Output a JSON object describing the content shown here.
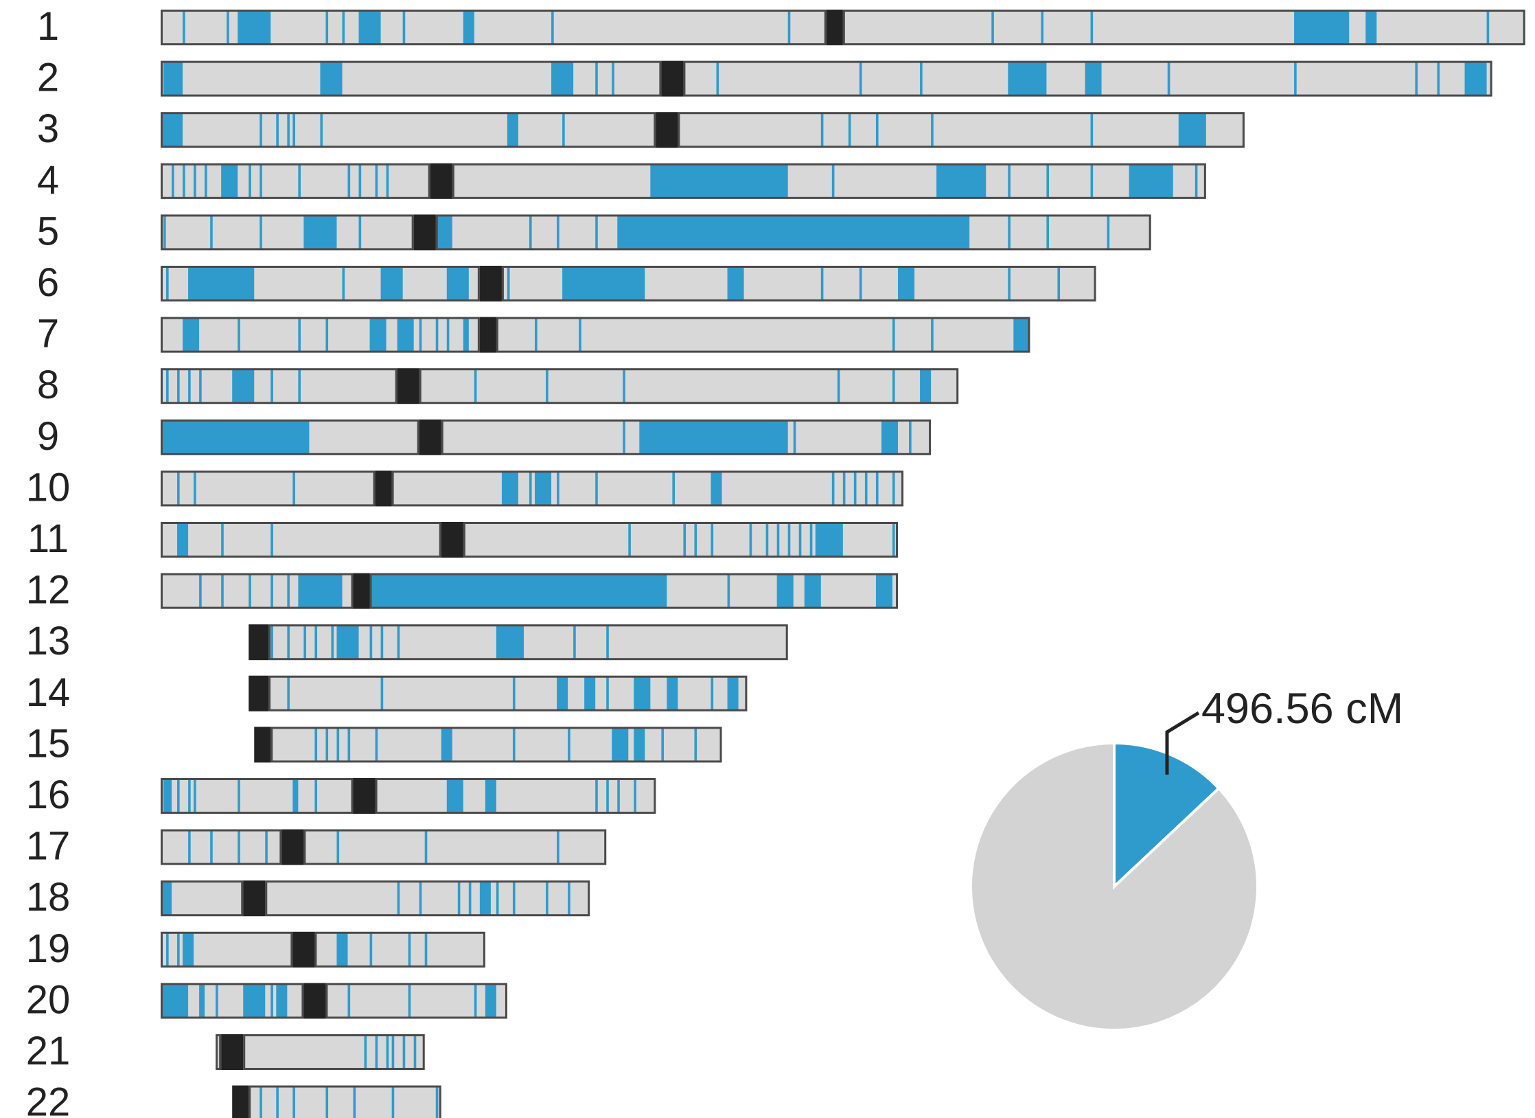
{
  "chart_data": {
    "type": "chromosome-ideogram-with-pie",
    "units": "approximate position along chromosome, scaled so chromosome 1 ≈ 248",
    "colors": {
      "shared": "#2f9bcc",
      "background": "#d8d8d8",
      "centromere": "#222222",
      "outline": "#4a4a4a",
      "pie_rest": "#d3d3d3"
    },
    "chromosomes": [
      {
        "label": "1",
        "start": 0,
        "end": 248,
        "centromere": [
          121,
          124
        ],
        "segments": [
          [
            14,
            20
          ],
          4,
          12,
          30,
          33,
          [
            36,
            40
          ],
          44,
          [
            55,
            57
          ],
          71,
          114,
          151,
          160,
          169,
          [
            206,
            216
          ],
          [
            219,
            221
          ],
          241
        ]
      },
      {
        "label": "2",
        "start": 0,
        "end": 242,
        "centromere": [
          91,
          95
        ],
        "segments": [
          [
            0.5,
            4
          ],
          [
            29,
            33
          ],
          [
            71,
            75
          ],
          79,
          82,
          101,
          127,
          138,
          [
            154,
            161
          ],
          [
            168,
            171
          ],
          183,
          206,
          228,
          232,
          [
            237,
            241
          ]
        ]
      },
      {
        "label": "3",
        "start": 0,
        "end": 197,
        "centromere": [
          90,
          94
        ],
        "segments": [
          [
            0,
            4
          ],
          18,
          21,
          23,
          24,
          29,
          [
            63,
            65
          ],
          73,
          120,
          125,
          130,
          140,
          169,
          [
            185,
            190
          ]
        ]
      },
      {
        "label": "4",
        "start": 0,
        "end": 190,
        "centromere": [
          49,
          53
        ],
        "segments": [
          2,
          4,
          6,
          8,
          [
            11,
            14
          ],
          16,
          18,
          25,
          34,
          36,
          39,
          41,
          [
            89,
            114
          ],
          122,
          [
            141,
            150
          ],
          154,
          161,
          169,
          [
            176,
            184
          ],
          188
        ]
      },
      {
        "label": "5",
        "start": 0,
        "end": 180,
        "centromere": [
          46,
          50
        ],
        "segments": [
          0.5,
          9,
          18,
          [
            26,
            32
          ],
          36,
          [
            50,
            53
          ],
          67,
          72,
          79,
          [
            83,
            147
          ],
          154,
          161,
          172
        ]
      },
      {
        "label": "6",
        "start": 0,
        "end": 170,
        "centromere": [
          58,
          62
        ],
        "segments": [
          1,
          [
            5,
            17
          ],
          33,
          [
            40,
            44
          ],
          [
            52,
            56
          ],
          63,
          [
            73,
            88
          ],
          [
            103,
            106
          ],
          120,
          127,
          [
            134,
            137
          ],
          154,
          163
        ]
      },
      {
        "label": "7",
        "start": 0,
        "end": 158,
        "centromere": [
          58,
          61
        ],
        "segments": [
          [
            4,
            7
          ],
          14,
          25,
          30,
          [
            38,
            41
          ],
          [
            43,
            46
          ],
          47,
          50,
          52,
          [
            55,
            56
          ],
          68,
          76,
          133,
          140,
          [
            155,
            158
          ]
        ]
      },
      {
        "label": "8",
        "start": 0,
        "end": 145,
        "centromere": [
          43,
          47
        ],
        "segments": [
          1,
          3,
          5,
          7,
          [
            13,
            17
          ],
          20,
          25,
          57,
          70,
          84,
          123,
          133,
          [
            138,
            140
          ]
        ]
      },
      {
        "label": "9",
        "start": 0,
        "end": 140,
        "centromere": [
          47,
          51
        ],
        "segments": [
          [
            0,
            27
          ],
          84,
          [
            87,
            114
          ],
          115,
          [
            131,
            134
          ],
          136
        ]
      },
      {
        "label": "10",
        "start": 0,
        "end": 135,
        "centromere": [
          39,
          42
        ],
        "segments": [
          3,
          6,
          24,
          [
            62,
            65
          ],
          67,
          [
            68,
            71
          ],
          72,
          79,
          93,
          [
            100,
            102
          ],
          122,
          124,
          126,
          128,
          130,
          133
        ]
      },
      {
        "label": "11",
        "start": 0,
        "end": 134,
        "centromere": [
          51,
          55
        ],
        "segments": [
          [
            3,
            5
          ],
          11,
          20,
          85,
          95,
          97,
          100,
          107,
          110,
          112,
          114,
          116,
          118,
          [
            119,
            124
          ],
          133
        ]
      },
      {
        "label": "12",
        "start": 0,
        "end": 134,
        "centromere": [
          35,
          38
        ],
        "segments": [
          7,
          11,
          16,
          20,
          23,
          [
            25,
            33
          ],
          [
            38,
            92
          ],
          103,
          [
            112,
            115
          ],
          [
            117,
            120
          ],
          [
            130,
            133
          ]
        ]
      },
      {
        "label": "13",
        "start": 16,
        "end": 114,
        "centromere": [
          16,
          19.6
        ],
        "segments": [
          20,
          23,
          26,
          28,
          31,
          [
            32,
            36
          ],
          38,
          40,
          43,
          [
            61,
            66
          ],
          75,
          81
        ]
      },
      {
        "label": "14",
        "start": 16,
        "end": 106.6,
        "centromere": [
          16,
          19.6
        ],
        "segments": [
          23,
          40,
          64,
          [
            72,
            74
          ],
          [
            77,
            79
          ],
          81,
          [
            86,
            89
          ],
          [
            92,
            94
          ],
          100,
          [
            103,
            105
          ]
        ]
      },
      {
        "label": "15",
        "start": 17,
        "end": 102,
        "centromere": [
          17,
          20
        ],
        "segments": [
          28,
          30,
          32,
          34,
          39,
          [
            51,
            53
          ],
          64,
          74,
          [
            82,
            85
          ],
          [
            86,
            88
          ],
          91,
          97
        ]
      },
      {
        "label": "16",
        "start": 0,
        "end": 90,
        "centromere": [
          35,
          39
        ],
        "segments": [
          [
            0.5,
            2
          ],
          3,
          5,
          6,
          14,
          [
            24,
            25
          ],
          28,
          [
            52,
            55
          ],
          [
            59,
            61
          ],
          79,
          81,
          83,
          86
        ]
      },
      {
        "label": "17",
        "start": 0,
        "end": 81,
        "centromere": [
          22,
          26
        ],
        "segments": [
          5,
          9,
          14,
          19,
          32,
          48,
          72
        ]
      },
      {
        "label": "18",
        "start": 0,
        "end": 78,
        "centromere": [
          15,
          19
        ],
        "segments": [
          [
            0,
            2
          ],
          43,
          47,
          54,
          56,
          [
            58,
            60
          ],
          61,
          64,
          70,
          74
        ]
      },
      {
        "label": "19",
        "start": 0,
        "end": 59,
        "centromere": [
          24,
          28
        ],
        "segments": [
          1,
          3,
          [
            4,
            6
          ],
          [
            32,
            34
          ],
          38,
          45,
          48
        ]
      },
      {
        "label": "20",
        "start": 0,
        "end": 63,
        "centromere": [
          26,
          30
        ],
        "segments": [
          [
            0,
            5
          ],
          [
            7,
            8
          ],
          10,
          [
            15,
            19
          ],
          20,
          [
            21,
            23
          ],
          34,
          45,
          57,
          [
            59,
            61
          ]
        ]
      },
      {
        "label": "21",
        "start": 10,
        "end": 48,
        "centromere": [
          11,
          15
        ],
        "segments": [
          37,
          39,
          41,
          42,
          44,
          46
        ]
      },
      {
        "label": "22",
        "start": 13,
        "end": 51,
        "centromere": [
          13,
          16
        ],
        "segments": [
          18,
          21,
          24,
          30,
          35,
          42,
          50
        ]
      }
    ],
    "pie": {
      "slices": [
        {
          "name": "shared",
          "fraction": 0.13,
          "color": "#2f9bcc"
        },
        {
          "name": "rest",
          "fraction": 0.87,
          "color": "#d3d3d3"
        }
      ],
      "annotation": "496.56 cM"
    }
  }
}
